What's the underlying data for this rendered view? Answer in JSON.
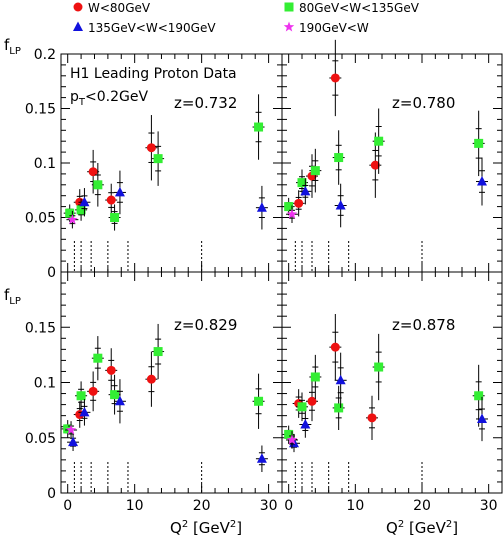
{
  "legend": [
    {
      "key": "w_lt_80",
      "label": "W<80GeV",
      "color": "#ee1111",
      "marker": "circle"
    },
    {
      "key": "w_80_135",
      "label": "80GeV<W<135GeV",
      "color": "#33ee33",
      "marker": "square"
    },
    {
      "key": "w_135_190",
      "label": "135GeV<W<190GeV",
      "color": "#1111dd",
      "marker": "triangle"
    },
    {
      "key": "w_gt_190",
      "label": "190GeV<W",
      "color": "#ee33ee",
      "marker": "star"
    }
  ],
  "chart_data": {
    "type": "scatter",
    "experiment_label": "H1 Leading Proton Data",
    "pt_cut_label": "p_T<0.2GeV",
    "ylabel": "f_LP",
    "xlabel": "Q^2 [GeV^2]",
    "xlim": [
      -1,
      32
    ],
    "ylim": [
      0,
      0.2
    ],
    "x_ticks": [
      0,
      10,
      20,
      30
    ],
    "y_ticks": [
      0,
      0.05,
      0.1,
      0.15,
      0.2
    ],
    "y_tick_labels": [
      "0",
      "0.05",
      "0.1",
      "0.15",
      "0.2"
    ],
    "y_tick_labels_lower": [
      "0",
      "0.05",
      "0.1",
      "0.15",
      ""
    ],
    "bin_edges_x": [
      1,
      2,
      3.5,
      6,
      9,
      20
    ],
    "panels": [
      {
        "z_label": "z=0.732",
        "series": {
          "w_lt_80": [
            {
              "x": 1.8,
              "y": 0.064,
              "err": 0.012
            },
            {
              "x": 3.8,
              "y": 0.092,
              "err": 0.02
            },
            {
              "x": 6.5,
              "y": 0.066,
              "err": 0.015
            },
            {
              "x": 12.5,
              "y": 0.114,
              "err": 0.03
            }
          ],
          "w_80_135": [
            {
              "x": 0.3,
              "y": 0.054,
              "err": 0.008
            },
            {
              "x": 2.0,
              "y": 0.057,
              "err": 0.01
            },
            {
              "x": 4.5,
              "y": 0.08,
              "err": 0.02
            },
            {
              "x": 7.0,
              "y": 0.05,
              "err": 0.012
            },
            {
              "x": 13.5,
              "y": 0.104,
              "err": 0.025
            },
            {
              "x": 28.5,
              "y": 0.133,
              "err": 0.03
            }
          ],
          "w_135_190": [
            {
              "x": 2.5,
              "y": 0.064,
              "err": 0.013
            },
            {
              "x": 7.8,
              "y": 0.073,
              "err": 0.02
            },
            {
              "x": 29.0,
              "y": 0.059,
              "err": 0.02
            }
          ],
          "w_gt_190": [
            {
              "x": 0.7,
              "y": 0.048,
              "err": 0.008
            }
          ]
        }
      },
      {
        "z_label": "z=0.780",
        "series": {
          "w_lt_80": [
            {
              "x": 1.5,
              "y": 0.063,
              "err": 0.012
            },
            {
              "x": 3.5,
              "y": 0.088,
              "err": 0.02
            },
            {
              "x": 7.0,
              "y": 0.178,
              "err": 0.035
            },
            {
              "x": 13.0,
              "y": 0.098,
              "err": 0.03
            }
          ],
          "w_80_135": [
            {
              "x": 0.0,
              "y": 0.06,
              "err": 0.008
            },
            {
              "x": 2.0,
              "y": 0.082,
              "err": 0.012
            },
            {
              "x": 4.0,
              "y": 0.093,
              "err": 0.02
            },
            {
              "x": 7.5,
              "y": 0.105,
              "err": 0.025
            },
            {
              "x": 13.5,
              "y": 0.12,
              "err": 0.03
            },
            {
              "x": 28.5,
              "y": 0.118,
              "err": 0.03
            }
          ],
          "w_135_190": [
            {
              "x": 2.5,
              "y": 0.074,
              "err": 0.012
            },
            {
              "x": 7.8,
              "y": 0.061,
              "err": 0.02
            },
            {
              "x": 29.0,
              "y": 0.083,
              "err": 0.022
            }
          ],
          "w_gt_190": [
            {
              "x": 0.5,
              "y": 0.053,
              "err": 0.008
            }
          ]
        }
      },
      {
        "z_label": "z=0.829",
        "series": {
          "w_lt_80": [
            {
              "x": 1.8,
              "y": 0.071,
              "err": 0.012
            },
            {
              "x": 3.8,
              "y": 0.092,
              "err": 0.018
            },
            {
              "x": 6.5,
              "y": 0.111,
              "err": 0.02
            },
            {
              "x": 12.5,
              "y": 0.103,
              "err": 0.025
            }
          ],
          "w_80_135": [
            {
              "x": 0.0,
              "y": 0.058,
              "err": 0.008
            },
            {
              "x": 2.0,
              "y": 0.088,
              "err": 0.013
            },
            {
              "x": 4.5,
              "y": 0.122,
              "err": 0.02
            },
            {
              "x": 7.0,
              "y": 0.089,
              "err": 0.018
            },
            {
              "x": 13.5,
              "y": 0.128,
              "err": 0.025
            },
            {
              "x": 28.5,
              "y": 0.083,
              "err": 0.025
            }
          ],
          "w_135_190": [
            {
              "x": 0.8,
              "y": 0.046,
              "err": 0.008
            },
            {
              "x": 2.5,
              "y": 0.073,
              "err": 0.012
            },
            {
              "x": 7.8,
              "y": 0.083,
              "err": 0.02
            },
            {
              "x": 29.0,
              "y": 0.031,
              "err": 0.012
            }
          ],
          "w_gt_190": [
            {
              "x": 0.5,
              "y": 0.057,
              "err": 0.008
            }
          ]
        }
      },
      {
        "z_label": "z=0.878",
        "series": {
          "w_lt_80": [
            {
              "x": 1.5,
              "y": 0.081,
              "err": 0.013
            },
            {
              "x": 3.5,
              "y": 0.083,
              "err": 0.018
            },
            {
              "x": 7.0,
              "y": 0.132,
              "err": 0.03
            },
            {
              "x": 12.5,
              "y": 0.068,
              "err": 0.02
            }
          ],
          "w_80_135": [
            {
              "x": 0.0,
              "y": 0.053,
              "err": 0.008
            },
            {
              "x": 2.0,
              "y": 0.078,
              "err": 0.013
            },
            {
              "x": 4.0,
              "y": 0.105,
              "err": 0.02
            },
            {
              "x": 7.5,
              "y": 0.077,
              "err": 0.02
            },
            {
              "x": 13.5,
              "y": 0.114,
              "err": 0.03
            },
            {
              "x": 28.5,
              "y": 0.088,
              "err": 0.028
            }
          ],
          "w_135_190": [
            {
              "x": 0.8,
              "y": 0.045,
              "err": 0.008
            },
            {
              "x": 2.5,
              "y": 0.062,
              "err": 0.012
            },
            {
              "x": 7.8,
              "y": 0.102,
              "err": 0.025
            },
            {
              "x": 29.0,
              "y": 0.067,
              "err": 0.02
            }
          ],
          "w_gt_190": [
            {
              "x": 0.5,
              "y": 0.048,
              "err": 0.008
            }
          ]
        }
      }
    ]
  }
}
